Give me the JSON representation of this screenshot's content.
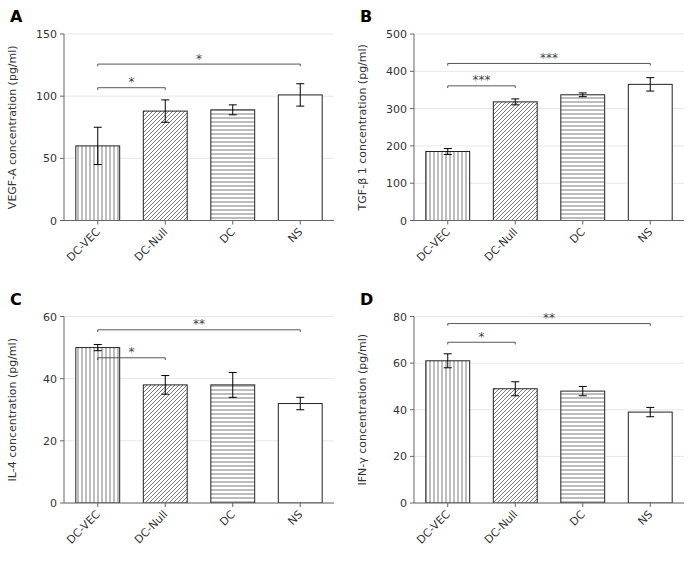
{
  "chart_data": [
    {
      "type": "bar",
      "title": "A",
      "ylabel": "VEGF-A concentration (pg/ml)",
      "categories": [
        "DC-VEC",
        "DC-Null",
        "DC",
        "NS"
      ],
      "values": [
        60,
        88,
        89,
        101
      ],
      "errors": [
        15,
        9,
        4,
        9
      ],
      "color": "#222222",
      "ylim": [
        0,
        150
      ],
      "yticks": [
        0,
        50,
        100,
        150
      ],
      "annotations": [
        {
          "text": "*",
          "between": [
            "DC-VEC",
            "DC-Null"
          ],
          "y": 105
        },
        {
          "text": "*",
          "between": [
            "DC-VEC",
            "NS"
          ],
          "y": 124
        }
      ]
    },
    {
      "type": "bar",
      "title": "B",
      "ylabel": "TGF-β 1 concentration (pg/ml)",
      "categories": [
        "DC-VEC",
        "DC-Null",
        "DC",
        "NS"
      ],
      "values": [
        185,
        318,
        337,
        365
      ],
      "errors": [
        8,
        8,
        5,
        18
      ],
      "color": "#222222",
      "ylim": [
        0,
        500
      ],
      "yticks": [
        0,
        100,
        200,
        300,
        400,
        500
      ],
      "annotations": [
        {
          "text": "***",
          "between": [
            "DC-VEC",
            "DC-Null"
          ],
          "y": 355
        },
        {
          "text": "***",
          "between": [
            "DC-VEC",
            "NS"
          ],
          "y": 415
        }
      ]
    },
    {
      "type": "bar",
      "title": "C",
      "ylabel": "IL-4 concentration (pg/ml)",
      "categories": [
        "DC-VEC",
        "DC-Null",
        "DC",
        "NS"
      ],
      "values": [
        50,
        38,
        38,
        32
      ],
      "errors": [
        1,
        3,
        4,
        2
      ],
      "color": "#222222",
      "ylim": [
        0,
        60
      ],
      "yticks": [
        0,
        20,
        40,
        60
      ],
      "annotations": [
        {
          "text": "*",
          "between": [
            "DC-VEC",
            "DC-Null"
          ],
          "y": 46
        },
        {
          "text": "**",
          "between": [
            "DC-VEC",
            "NS"
          ],
          "y": 55
        }
      ]
    },
    {
      "type": "bar",
      "title": "D",
      "ylabel": "IFN-γ concentration (pg/ml)",
      "categories": [
        "DC-VEC",
        "DC-Null",
        "DC",
        "NS"
      ],
      "values": [
        61,
        49,
        48,
        39
      ],
      "errors": [
        3,
        3,
        2,
        2
      ],
      "color": "#222222",
      "ylim": [
        0,
        80
      ],
      "yticks": [
        0,
        20,
        40,
        60,
        80
      ],
      "annotations": [
        {
          "text": "*",
          "between": [
            "DC-VEC",
            "DC-Null"
          ],
          "y": 68
        },
        {
          "text": "**",
          "between": [
            "DC-VEC",
            "NS"
          ],
          "y": 76
        }
      ]
    }
  ]
}
